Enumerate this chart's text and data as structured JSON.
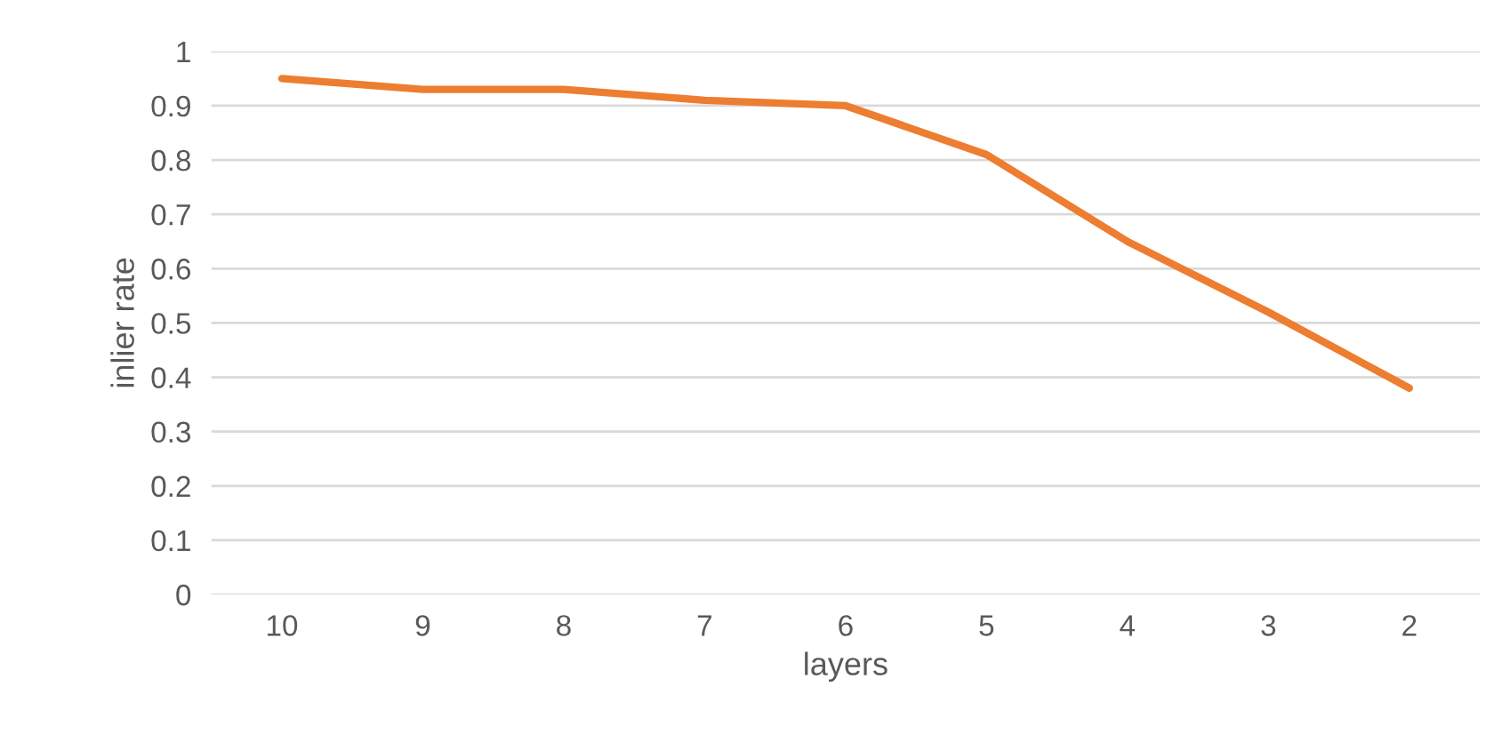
{
  "chart_data": {
    "type": "line",
    "xlabel": "layers",
    "ylabel": "inlier rate",
    "categories": [
      "10",
      "9",
      "8",
      "7",
      "6",
      "5",
      "4",
      "3",
      "2"
    ],
    "series": [
      {
        "color": "#ed7d31",
        "values": [
          0.95,
          0.93,
          0.93,
          0.91,
          0.9,
          0.81,
          0.65,
          0.52,
          0.38
        ]
      }
    ],
    "ylim": [
      0,
      1
    ],
    "yticks": [
      0,
      0.1,
      0.2,
      0.3,
      0.4,
      0.5,
      0.6,
      0.7,
      0.8,
      0.9,
      1
    ],
    "grid": "y",
    "legend": false
  }
}
